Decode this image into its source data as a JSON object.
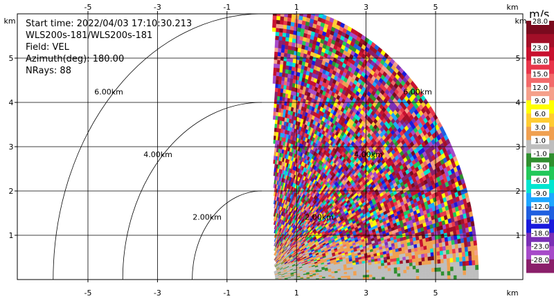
{
  "chart_data": {
    "type": "heatmap",
    "plot_kind": "radar PPI sector (polar sweep)",
    "info": {
      "start_time": "Start time: 2022/04/03 17:10:30.213",
      "station": "WLS200s-181/WLS200s-181",
      "field": "Field: VEL",
      "azimuth": "Azimuth(deg): 180.00",
      "nrays": "NRays: 88"
    },
    "x_axis": {
      "unit": "km",
      "ticks": [
        "-5",
        "-3",
        "-1",
        "1",
        "3",
        "5"
      ],
      "tick_values": [
        -5,
        -3,
        -1,
        1,
        3,
        5
      ],
      "range": [
        -6.0,
        6.0
      ]
    },
    "y_axis": {
      "unit": "km",
      "ticks": [
        "1",
        "2",
        "3",
        "4",
        "5"
      ],
      "tick_values": [
        1,
        2,
        3,
        4,
        5
      ],
      "range": [
        0.0,
        6.0
      ]
    },
    "grid": true,
    "range_rings": [
      {
        "radius_km": 2,
        "label": "2.00km"
      },
      {
        "radius_km": 4,
        "label": "4.00km"
      },
      {
        "radius_km": 6,
        "label": "6.00km"
      }
    ],
    "sector": {
      "x_start_km": 0.35,
      "max_range_km": 6.2,
      "angle_min_deg": 0,
      "angle_max_deg": 90,
      "nrays": 88
    },
    "colorbar": {
      "unit": "m/s",
      "labels": [
        "28.0",
        "23.0",
        "18.0",
        "15.0",
        "12.0",
        "9.0",
        "6.0",
        "3.0",
        "1.0",
        "-1.0",
        "-3.0",
        "-6.0",
        "-9.0",
        "-12.0",
        "-15.0",
        "-18.0",
        "-23.0",
        "-28.0"
      ],
      "colors": [
        "#7a0a1e",
        "#a30f28",
        "#c8102e",
        "#e8354a",
        "#f26a6a",
        "#f5a08a",
        "#ffff00",
        "#ffcc33",
        "#f0a050",
        "#bebebe",
        "#2f8f2f",
        "#22c85a",
        "#00e5d0",
        "#1ea7ff",
        "#1f5fe0",
        "#1a1adc",
        "#7a2fb5",
        "#a64ac9",
        "#8a1f6a"
      ]
    }
  }
}
